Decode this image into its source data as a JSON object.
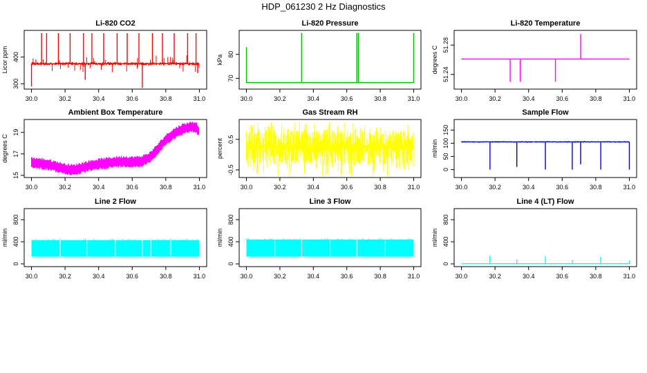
{
  "main_title": "HDP_061230  2 Hz Diagnostics",
  "chart_data": [
    {
      "type": "line",
      "title": "Li-820 CO2",
      "ylabel": "Licor ppm",
      "color": "#ff0000",
      "xlim": [
        30.0,
        31.0
      ],
      "ylim": [
        280,
        500
      ],
      "yticks": [
        300,
        400
      ],
      "x_ticks": [
        "30.0",
        "30.2",
        "30.4",
        "30.6",
        "30.8",
        "31.0"
      ],
      "baseline": 375,
      "band": 6,
      "spikes_up": [
        [
          30.06,
          490
        ],
        [
          30.09,
          490
        ],
        [
          30.16,
          490
        ],
        [
          30.23,
          490
        ],
        [
          30.31,
          490
        ],
        [
          30.36,
          490
        ],
        [
          30.43,
          490
        ],
        [
          30.51,
          490
        ],
        [
          30.57,
          490
        ],
        [
          30.64,
          490
        ],
        [
          30.72,
          490
        ],
        [
          30.78,
          490
        ],
        [
          30.85,
          490
        ],
        [
          30.93,
          490
        ],
        [
          30.98,
          490
        ]
      ],
      "spikes_down": [
        [
          30.0,
          290
        ],
        [
          30.32,
          315
        ],
        [
          30.66,
          285
        ],
        [
          30.99,
          340
        ]
      ]
    },
    {
      "type": "line",
      "title": "Li-820 Pressure",
      "ylabel": "kPa",
      "color": "#00c000",
      "xlim": [
        30.0,
        31.0
      ],
      "ylim": [
        65.5,
        90
      ],
      "yticks": [
        70,
        80
      ],
      "x_ticks": [
        "30.0",
        "30.2",
        "30.4",
        "30.6",
        "30.8",
        "31.0"
      ],
      "baseline": 68.2,
      "band": 0.2,
      "spikes_up": [
        [
          30.0,
          83
        ],
        [
          30.33,
          89
        ],
        [
          30.66,
          89
        ],
        [
          30.67,
          89
        ],
        [
          31.0,
          89
        ]
      ],
      "spikes_down": []
    },
    {
      "type": "line",
      "title": "Li-820 Temperature",
      "ylabel": "degrees C",
      "color": "#ff00ff",
      "xlim": [
        30.0,
        31.0
      ],
      "ylim": [
        51.22,
        51.3
      ],
      "yticks": [
        51.24,
        51.28
      ],
      "x_ticks": [
        "30.0",
        "30.2",
        "30.4",
        "30.6",
        "30.8",
        "31.0"
      ],
      "baseline": 51.261,
      "band": 0,
      "spikes_up": [
        [
          30.71,
          51.295
        ]
      ],
      "spikes_down": [
        [
          30.29,
          51.23
        ],
        [
          30.35,
          51.23
        ],
        [
          30.56,
          51.23
        ]
      ]
    },
    {
      "type": "line",
      "title": "Ambient Box Temperature",
      "ylabel": "degrees C",
      "color": "#ff00ff",
      "xlim": [
        30.0,
        31.0
      ],
      "ylim": [
        14.8,
        20.2
      ],
      "yticks": [
        15,
        17,
        19
      ],
      "x_ticks": [
        "30.0",
        "30.2",
        "30.4",
        "30.6",
        "30.8",
        "31.0"
      ],
      "profile": [
        [
          30.0,
          16.2
        ],
        [
          30.05,
          16.1
        ],
        [
          30.1,
          16.0
        ],
        [
          30.15,
          15.8
        ],
        [
          30.2,
          15.6
        ],
        [
          30.25,
          15.5
        ],
        [
          30.3,
          15.7
        ],
        [
          30.35,
          15.9
        ],
        [
          30.4,
          16.05
        ],
        [
          30.45,
          16.15
        ],
        [
          30.5,
          16.25
        ],
        [
          30.55,
          16.3
        ],
        [
          30.6,
          16.25
        ],
        [
          30.65,
          16.3
        ],
        [
          30.7,
          16.6
        ],
        [
          30.75,
          17.4
        ],
        [
          30.8,
          18.3
        ],
        [
          30.85,
          18.9
        ],
        [
          30.9,
          19.3
        ],
        [
          30.95,
          19.5
        ],
        [
          30.98,
          19.5
        ],
        [
          31.0,
          19.0
        ]
      ],
      "band": 0.55
    },
    {
      "type": "line",
      "title": "Gas Stream RH",
      "ylabel": "percent",
      "color": "#ffff00",
      "xlim": [
        30.0,
        31.0
      ],
      "ylim": [
        -0.75,
        1.15
      ],
      "yticks": [
        -0.5,
        0.5
      ],
      "x_ticks": [
        "30.0",
        "30.2",
        "30.4",
        "30.6",
        "30.8",
        "31.0"
      ],
      "noise_low": -0.7,
      "noise_high": 1.05
    },
    {
      "type": "line",
      "title": "Sample Flow",
      "ylabel": "ml/min",
      "color": "#0000cc",
      "xlim": [
        30.0,
        31.0
      ],
      "ylim": [
        -30,
        190
      ],
      "yticks": [
        0,
        50,
        100,
        150
      ],
      "x_ticks": [
        "30.0",
        "30.2",
        "30.4",
        "30.6",
        "30.8",
        "31.0"
      ],
      "baseline": 105,
      "band": 3,
      "spikes_up": [],
      "spikes_down": [
        [
          30.17,
          0
        ],
        [
          30.33,
          10
        ],
        [
          30.5,
          0
        ],
        [
          30.66,
          0
        ],
        [
          30.71,
          20
        ],
        [
          30.83,
          0
        ],
        [
          31.0,
          0
        ]
      ]
    },
    {
      "type": "line",
      "title": "Line 2 Flow",
      "ylabel": "ml/min",
      "color": "#00ffff",
      "xlim": [
        30.0,
        31.0
      ],
      "ylim": [
        -50,
        1000
      ],
      "yticks": [
        0,
        400,
        800
      ],
      "x_ticks": [
        "30.0",
        "30.2",
        "30.4",
        "30.6",
        "30.8",
        "31.0"
      ],
      "block_low": 130,
      "block_high": 430,
      "gaps": [
        30.17,
        30.33,
        30.5,
        30.66,
        30.71,
        30.83
      ]
    },
    {
      "type": "line",
      "title": "Line 3 Flow",
      "ylabel": "ml/min",
      "color": "#00ffff",
      "xlim": [
        30.0,
        31.0
      ],
      "ylim": [
        -50,
        1000
      ],
      "yticks": [
        0,
        400,
        800
      ],
      "x_ticks": [
        "30.0",
        "30.2",
        "30.4",
        "30.6",
        "30.8",
        "31.0"
      ],
      "block_low": 130,
      "block_high": 440,
      "gaps": [
        30.17,
        30.33,
        30.5,
        30.66,
        30.83
      ]
    },
    {
      "type": "line",
      "title": "Line 4 (LT) Flow",
      "ylabel": "ml/min",
      "color": "#00ffff",
      "xlim": [
        30.0,
        31.0
      ],
      "ylim": [
        -50,
        1000
      ],
      "yticks": [
        0,
        400,
        800
      ],
      "x_ticks": [
        "30.0",
        "30.2",
        "30.4",
        "30.6",
        "30.8",
        "31.0"
      ],
      "baseline": 2,
      "band": 0,
      "spikes_up": [
        [
          30.17,
          150
        ],
        [
          30.33,
          80
        ],
        [
          30.5,
          140
        ],
        [
          30.66,
          70
        ],
        [
          30.83,
          130
        ],
        [
          31.0,
          60
        ]
      ],
      "spikes_down": []
    }
  ]
}
